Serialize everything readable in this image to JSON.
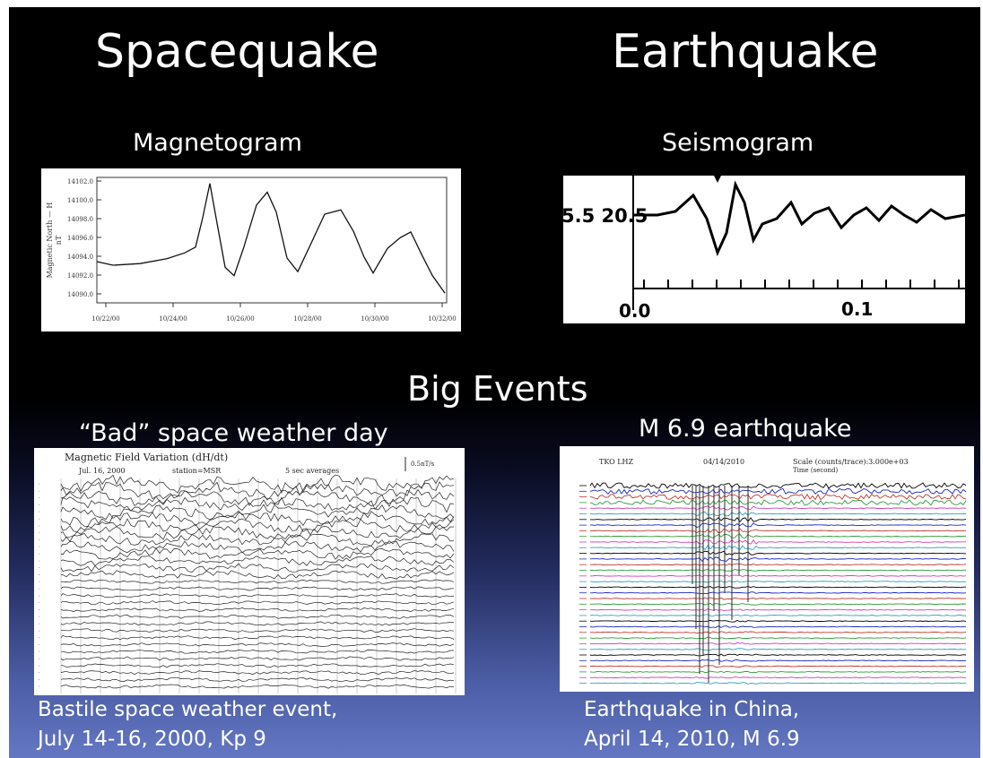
{
  "slide": {
    "left_title": "Spacequake",
    "right_title": "Earthquake",
    "left_subtitle": "Magnetogram",
    "right_subtitle": "Seismogram",
    "middle_title": "Big Events",
    "left_event_title": "“Bad” space weather day",
    "right_event_title": "M 6.9  earthquake",
    "left_caption_line1": "Bastile space weather event,",
    "left_caption_line2": "July 14-16, 2000,   Kp 9",
    "right_caption_line1": "Earthquake in China,",
    "right_caption_line2": " April 14, 2010,    M 6.9"
  },
  "magnetogram": {
    "ylabel": "Magnetic North — H",
    "yunit": "nT",
    "yticks": [
      "14102.0",
      "14100.0",
      "14098.0",
      "14096.0",
      "14094.0",
      "14092.0",
      "14090.0"
    ],
    "xticks": [
      "10/22/00",
      "10/24/00",
      "10/26/00",
      "10/28/00",
      "10/30/00",
      "10/32/00"
    ]
  },
  "seismogram": {
    "y_label": "5.5 20.5",
    "x_left": "0.0",
    "x_right": "0.1"
  },
  "variation": {
    "title": "Magnetic Field Variation (dH/dt)",
    "date": "Jul. 16, 2000",
    "station": "station=MSR",
    "avg": "5 sec averages",
    "scale": "0.5nT/s"
  },
  "china": {
    "header_left": "TKO LHZ",
    "header_date": "04/14/2010",
    "header_scale": "Scale (counts/trace):3.000e+03",
    "header_time": "Time (second)"
  },
  "colors": {
    "slide_top": "#000000",
    "slide_bottom": "#6477c3",
    "trace_colors": [
      "#000000",
      "#1b27c7",
      "#c0392b",
      "#2e9b3a",
      "#d13fb6",
      "#2fa3b5"
    ]
  }
}
